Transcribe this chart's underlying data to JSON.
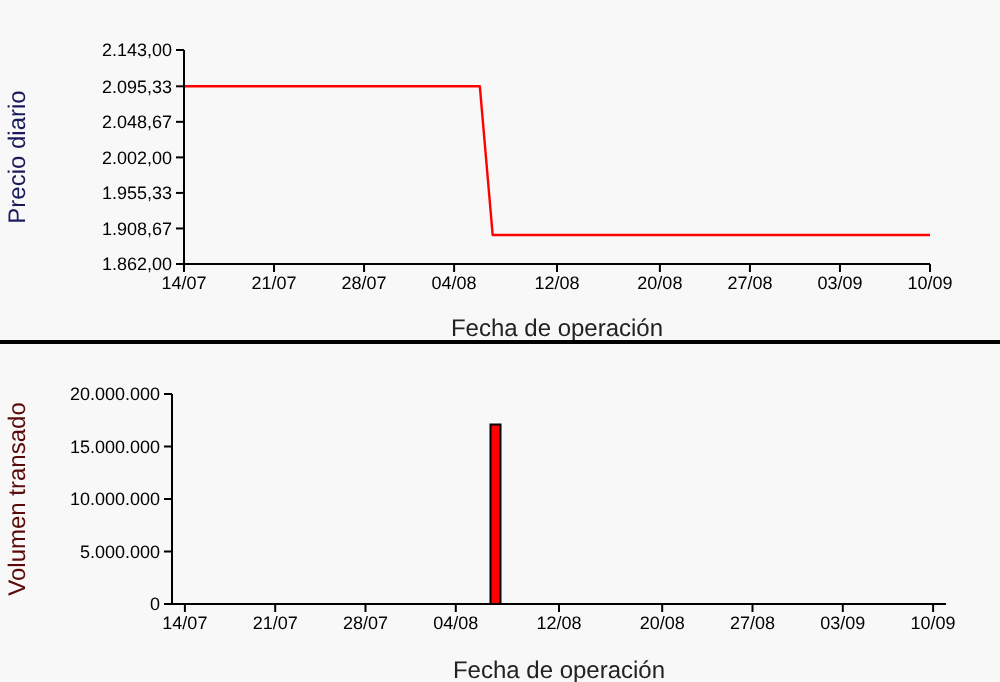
{
  "chart_data": [
    {
      "type": "line",
      "ylabel": "Precio diario",
      "xlabel": "Fecha de operación",
      "x": [
        "--07-14",
        "--08-06",
        "--08-07",
        "--09-10"
      ],
      "series": [
        {
          "color": "#ff0000",
          "values": [
            2095.33,
            2095.33,
            1900,
            1900
          ]
        }
      ],
      "xlim": [
        "--07-14",
        "--09-10"
      ],
      "xticks": [
        {
          "value": "--07-14",
          "label": "14/07"
        },
        {
          "value": "--07-21",
          "label": "21/07"
        },
        {
          "value": "--07-28",
          "label": "28/07"
        },
        {
          "value": "--08-04",
          "label": "04/08"
        },
        {
          "value": "--08-12",
          "label": "12/08"
        },
        {
          "value": "--08-20",
          "label": "20/08"
        },
        {
          "value": "--08-27",
          "label": "27/08"
        },
        {
          "value": "--09-03",
          "label": "03/09"
        },
        {
          "value": "--09-10",
          "label": "10/09"
        }
      ],
      "ylim": [
        1862,
        2143
      ],
      "yticks": [
        {
          "value": 1862,
          "label": "1.862,00"
        },
        {
          "value": 1908.67,
          "label": "1.908,67"
        },
        {
          "value": 1955.33,
          "label": "1.955,33"
        },
        {
          "value": 2002,
          "label": "2.002,00"
        },
        {
          "value": 2048.67,
          "label": "2.048,67"
        },
        {
          "value": 2095.33,
          "label": "2.095,33"
        },
        {
          "value": 2143,
          "label": "2.143,00"
        }
      ],
      "marker": "none"
    },
    {
      "type": "bar",
      "ylabel": "Volumen transado",
      "xlabel": "Fecha de operación",
      "x": [
        "--08-07"
      ],
      "series": [
        {
          "color": "#ff0000",
          "values": [
            17100000
          ]
        }
      ],
      "xlim": [
        "--07-13",
        "--09-11"
      ],
      "xticks": [
        {
          "value": "--07-14",
          "label": "14/07"
        },
        {
          "value": "--07-21",
          "label": "21/07"
        },
        {
          "value": "--07-28",
          "label": "28/07"
        },
        {
          "value": "--08-04",
          "label": "04/08"
        },
        {
          "value": "--08-12",
          "label": "12/08"
        },
        {
          "value": "--08-20",
          "label": "20/08"
        },
        {
          "value": "--08-27",
          "label": "27/08"
        },
        {
          "value": "--09-03",
          "label": "03/09"
        },
        {
          "value": "--09-10",
          "label": "10/09"
        }
      ],
      "ylim": [
        0,
        20000000
      ],
      "yticks": [
        0,
        {
          "value": 5000000,
          "label": "5.000.000"
        },
        {
          "value": 10000000,
          "label": "10.000.000"
        },
        {
          "value": 15000000,
          "label": "15.000.000"
        },
        {
          "value": 20000000,
          "label": "20.000.000"
        }
      ]
    }
  ]
}
